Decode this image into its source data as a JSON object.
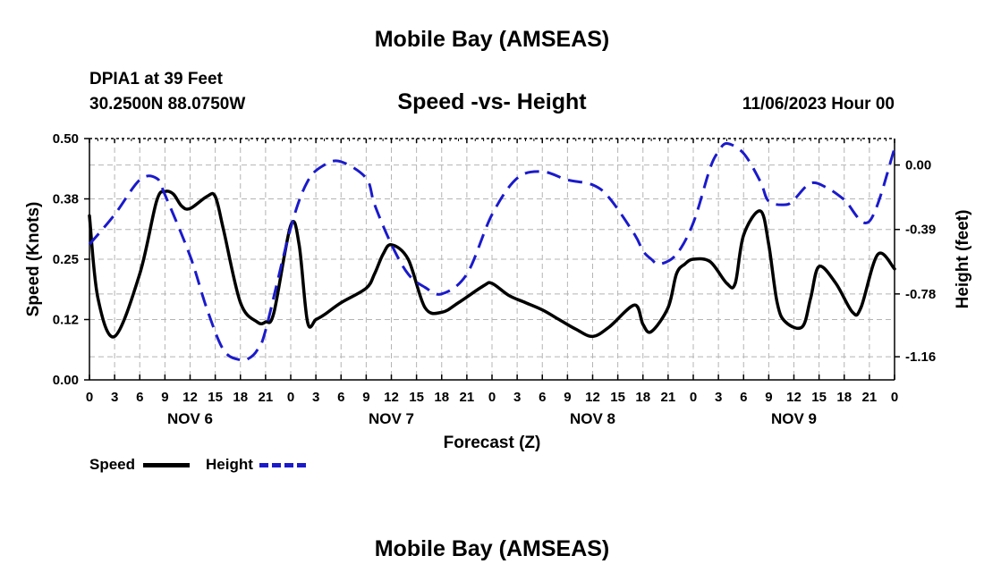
{
  "header": {
    "title": "Mobile Bay (AMSEAS)",
    "station": "DPIA1 at 39 Feet",
    "coords": "30.2500N  88.0750W",
    "subtitle": "Speed -vs- Height",
    "datetime": "11/06/2023 Hour 00"
  },
  "footer": {
    "title": "Mobile Bay (AMSEAS)"
  },
  "legend": {
    "speed_label": "Speed",
    "height_label": "Height"
  },
  "colors": {
    "speed": "#000000",
    "height": "#1a1acc",
    "grid": "#b4b4b4"
  },
  "chart_data": {
    "type": "line",
    "title": "Speed -vs- Height",
    "xlabel": "Forecast (Z)",
    "ylabel": "Speed (Knots)",
    "y2label": "Height (feet)",
    "x_range": [
      0,
      96
    ],
    "ylim": [
      0,
      0.5
    ],
    "y2lim": [
      -1.3,
      0.16
    ],
    "y_ticks": [
      0.0,
      0.125,
      0.25,
      0.375,
      0.5
    ],
    "y_tick_labels": [
      "0.00",
      "0.12",
      "0.25",
      "0.38",
      "0.50"
    ],
    "y2_ticks": [
      0.0,
      -0.39,
      -0.78,
      -1.16
    ],
    "y2_tick_labels": [
      "0.00",
      "-0.39",
      "-0.78",
      "-1.16"
    ],
    "x_tick_labels": [
      "0",
      "3",
      "6",
      "9",
      "12",
      "15",
      "18",
      "21",
      "0",
      "3",
      "6",
      "9",
      "12",
      "15",
      "18",
      "21",
      "0",
      "3",
      "6",
      "9",
      "12",
      "15",
      "18",
      "21",
      "0",
      "3",
      "6",
      "9",
      "12",
      "15",
      "18",
      "21",
      "0"
    ],
    "day_labels": [
      "NOV 6",
      "NOV 7",
      "NOV 8",
      "NOV 9"
    ],
    "grid": true,
    "series": [
      {
        "name": "Speed",
        "axis": "left",
        "style": "solid",
        "x": [
          0,
          1,
          3,
          6,
          8,
          9,
          10,
          11,
          12,
          14,
          15,
          16,
          18,
          20,
          21,
          22,
          24,
          25,
          26,
          27,
          28,
          30,
          33,
          34,
          35,
          36,
          38,
          40,
          42,
          44,
          47,
          48,
          50,
          52,
          54,
          56,
          58,
          60,
          62,
          65,
          66,
          67,
          69,
          70,
          71,
          72,
          74,
          76,
          77,
          78,
          80,
          81,
          82,
          83,
          85,
          86,
          87,
          89,
          91,
          92,
          94,
          96
        ],
        "values": [
          0.34,
          0.17,
          0.09,
          0.22,
          0.37,
          0.39,
          0.385,
          0.36,
          0.355,
          0.38,
          0.38,
          0.31,
          0.16,
          0.12,
          0.12,
          0.14,
          0.32,
          0.28,
          0.12,
          0.125,
          0.135,
          0.16,
          0.19,
          0.22,
          0.26,
          0.28,
          0.25,
          0.15,
          0.14,
          0.16,
          0.195,
          0.2,
          0.175,
          0.16,
          0.145,
          0.125,
          0.105,
          0.09,
          0.11,
          0.155,
          0.115,
          0.1,
          0.15,
          0.22,
          0.24,
          0.25,
          0.245,
          0.2,
          0.2,
          0.3,
          0.35,
          0.28,
          0.16,
          0.12,
          0.11,
          0.17,
          0.235,
          0.2,
          0.14,
          0.15,
          0.26,
          0.23
        ]
      },
      {
        "name": "Height",
        "axis": "right",
        "style": "dashed",
        "x": [
          0,
          3,
          6,
          8,
          9,
          12,
          14,
          16,
          18,
          19,
          20,
          21,
          24,
          26,
          28,
          30,
          33,
          34,
          36,
          38,
          40,
          42,
          45,
          48,
          51,
          54,
          57,
          60,
          62,
          65,
          66,
          67,
          68,
          70,
          72,
          74,
          75,
          76,
          78,
          80,
          81,
          83,
          84,
          86,
          88,
          90,
          93,
          96
        ],
        "values": [
          -0.48,
          -0.3,
          -0.09,
          -0.08,
          -0.18,
          -0.55,
          -0.87,
          -1.12,
          -1.18,
          -1.17,
          -1.12,
          -1.0,
          -0.38,
          -0.1,
          0.0,
          0.02,
          -0.08,
          -0.24,
          -0.48,
          -0.66,
          -0.74,
          -0.78,
          -0.66,
          -0.3,
          -0.08,
          -0.04,
          -0.09,
          -0.12,
          -0.2,
          -0.42,
          -0.52,
          -0.57,
          -0.6,
          -0.54,
          -0.35,
          -0.02,
          0.08,
          0.13,
          0.07,
          -0.1,
          -0.22,
          -0.24,
          -0.21,
          -0.11,
          -0.14,
          -0.21,
          -0.34,
          0.1
        ]
      }
    ]
  }
}
